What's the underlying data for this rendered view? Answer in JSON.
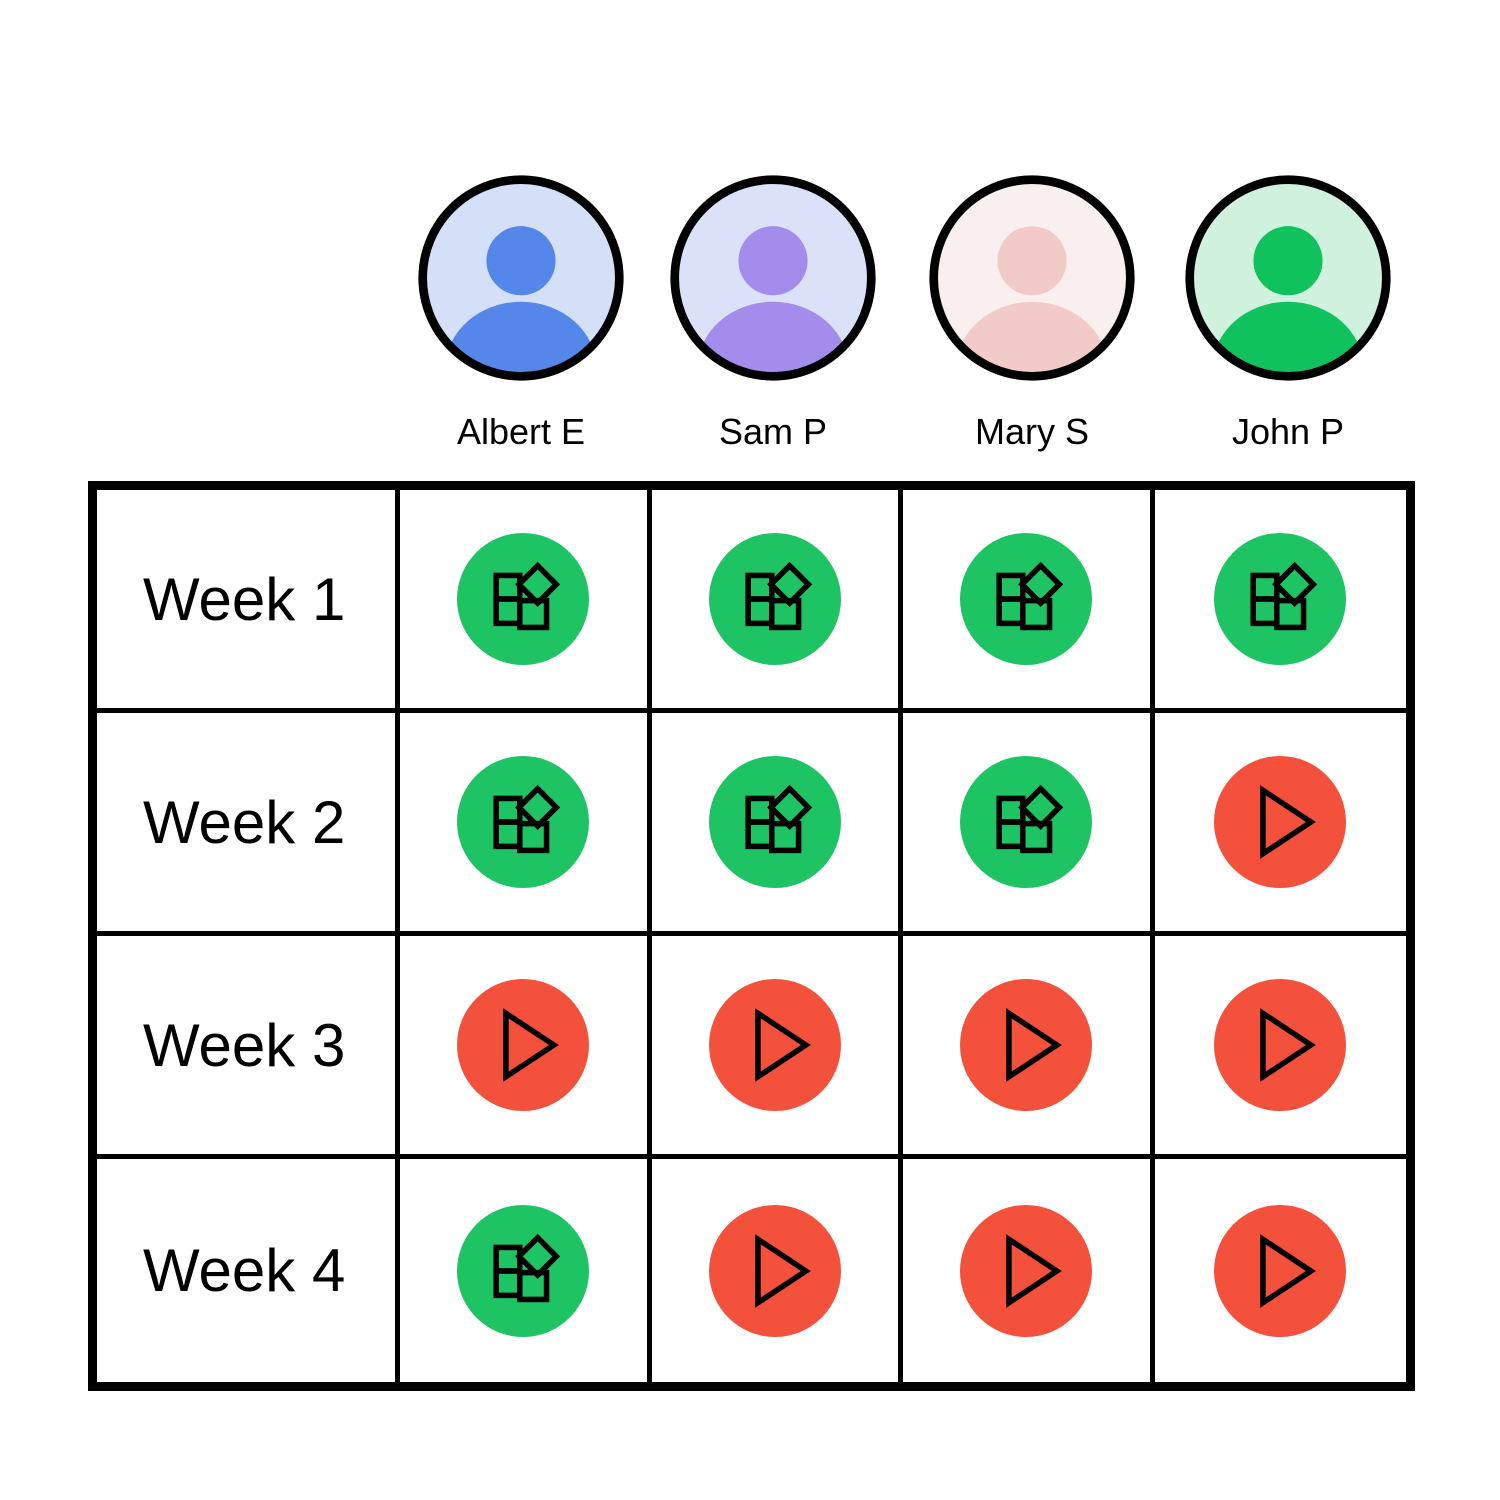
{
  "board": {
    "people": [
      {
        "name": "Albert E",
        "avatar_bg": "#D4E0F7",
        "avatar_fg": "#5586EA"
      },
      {
        "name": "Sam P",
        "avatar_bg": "#DBE1F9",
        "avatar_fg": "#A38CEC"
      },
      {
        "name": "Mary S",
        "avatar_bg": "#F9EFEF",
        "avatar_fg": "#F2CBC8"
      },
      {
        "name": "John P",
        "avatar_bg": "#D0F1DE",
        "avatar_fg": "#10C25D"
      }
    ],
    "weeks": [
      {
        "label": "Week 1",
        "statuses": [
          "done",
          "done",
          "done",
          "done"
        ]
      },
      {
        "label": "Week 2",
        "statuses": [
          "done",
          "done",
          "done",
          "pending"
        ]
      },
      {
        "label": "Week 3",
        "statuses": [
          "pending",
          "pending",
          "pending",
          "pending"
        ]
      },
      {
        "label": "Week 4",
        "statuses": [
          "done",
          "pending",
          "pending",
          "pending"
        ]
      }
    ],
    "status_types": {
      "done": {
        "icon": "blocks-icon",
        "color": "#1EC464"
      },
      "pending": {
        "icon": "play-icon",
        "color": "#F4513C"
      }
    },
    "line_color": "#000000"
  }
}
